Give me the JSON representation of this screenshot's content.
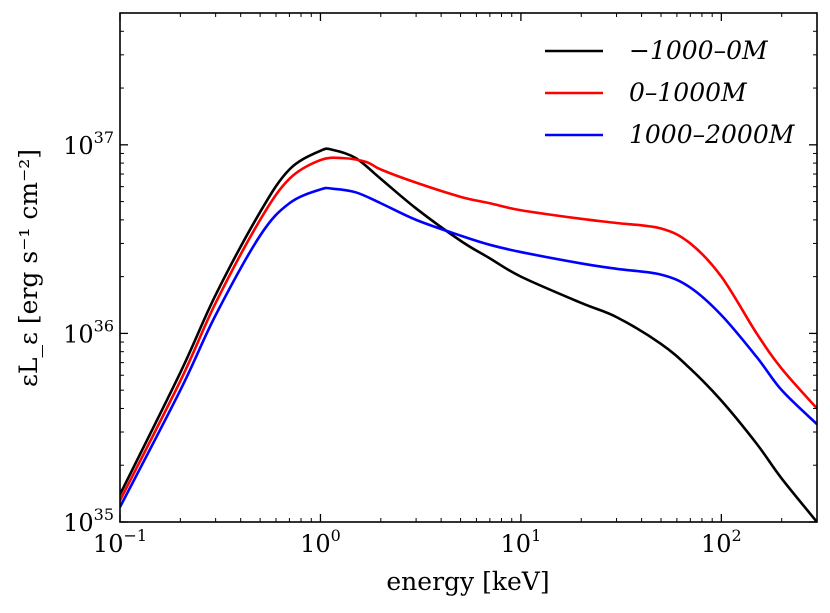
{
  "chart_data": {
    "type": "line",
    "title": "",
    "xlabel": "energy  [keV]",
    "ylabel": "εL_ε [erg s⁻¹ cm⁻²]",
    "xscale": "log",
    "yscale": "log",
    "xlim": [
      0.1,
      300
    ],
    "ylim": [
      1e+35,
      5e+37
    ],
    "x_ticks": [
      {
        "value": 0.1,
        "base": "10",
        "exp": "−1"
      },
      {
        "value": 1,
        "base": "10",
        "exp": "0"
      },
      {
        "value": 10,
        "base": "10",
        "exp": "1"
      },
      {
        "value": 100,
        "base": "10",
        "exp": "2"
      }
    ],
    "y_ticks": [
      {
        "value": 1e+35,
        "base": "10",
        "exp": "35"
      },
      {
        "value": 1e+36,
        "base": "10",
        "exp": "36"
      },
      {
        "value": 1e+37,
        "base": "10",
        "exp": "37"
      }
    ],
    "grid": false,
    "legend_position": "top-right",
    "series": [
      {
        "name": "−1000–0M",
        "color": "#000000",
        "x": [
          0.1,
          0.2,
          0.3,
          0.5,
          0.7,
          1.0,
          1.15,
          1.5,
          2.0,
          3.0,
          5.0,
          7.0,
          10,
          20,
          30,
          50,
          70,
          100,
          150,
          200,
          300
        ],
        "y": [
          1.4e+35,
          6.2e+35,
          1.6e+36,
          4.4e+36,
          7.4e+36,
          9.3e+36,
          9.4e+36,
          8.5e+36,
          6.6e+36,
          4.6e+36,
          3.1e+36,
          2.5e+36,
          2e+36,
          1.45e+36,
          1.22e+36,
          8.8e+35,
          6.5e+35,
          4.4e+35,
          2.6e+35,
          1.7e+35,
          1e+35
        ]
      },
      {
        "name": "0–1000M",
        "color": "#ff0000",
        "x": [
          0.1,
          0.2,
          0.3,
          0.5,
          0.7,
          1.0,
          1.3,
          1.7,
          2.0,
          3.0,
          5.0,
          7.0,
          10,
          20,
          30,
          50,
          70,
          100,
          150,
          200,
          300
        ],
        "y": [
          1.3e+35,
          5.6e+35,
          1.45e+36,
          4e+36,
          6.6e+36,
          8.3e+36,
          8.5e+36,
          8.1e+36,
          7.4e+36,
          6.3e+36,
          5.3e+36,
          4.9e+36,
          4.5e+36,
          4.05e+36,
          3.85e+36,
          3.6e+36,
          3e+36,
          2e+36,
          1e+36,
          6.5e+35,
          4e+35
        ]
      },
      {
        "name": "1000–2000M",
        "color": "#0000ff",
        "x": [
          0.1,
          0.2,
          0.3,
          0.5,
          0.7,
          1.0,
          1.15,
          1.5,
          2.0,
          3.0,
          5.0,
          7.0,
          10,
          20,
          30,
          50,
          70,
          100,
          150,
          200,
          300
        ],
        "y": [
          1.2e+35,
          5e+35,
          1.25e+36,
          3.3e+36,
          4.9e+36,
          5.8e+36,
          5.85e+36,
          5.6e+36,
          4.9e+36,
          4e+36,
          3.3e+36,
          2.95e+36,
          2.7e+36,
          2.35e+36,
          2.2e+36,
          2.05e+36,
          1.75e+36,
          1.25e+36,
          7.5e+35,
          5e+35,
          3.3e+35
        ]
      }
    ]
  }
}
